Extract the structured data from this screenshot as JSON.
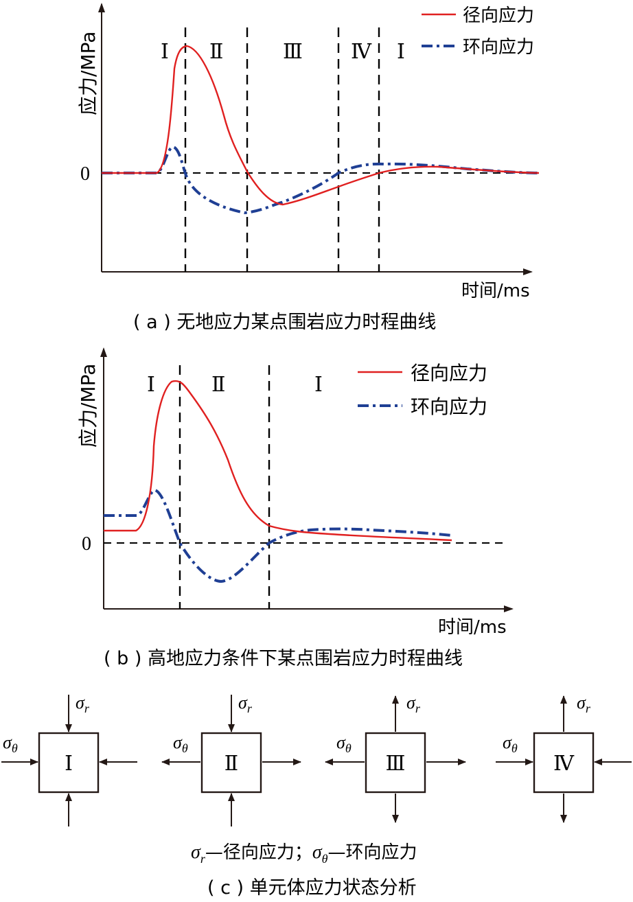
{
  "chart_a": {
    "y_axis_label": "应力/MPa",
    "x_axis_label": "时间/ms",
    "zero_label": "0",
    "caption": "( a ) 无地应力某点围岩应力时程曲线",
    "region_labels": [
      "Ⅰ",
      "Ⅱ",
      "Ⅲ",
      "Ⅳ",
      "Ⅰ"
    ],
    "legend": {
      "radial": "径向应力",
      "hoop": "环向应力"
    }
  },
  "chart_b": {
    "y_axis_label": "应力/MPa",
    "x_axis_label": "时间/ms",
    "zero_label": "0",
    "caption": "( b ) 高地应力条件下某点围岩应力时程曲线",
    "region_labels": [
      "Ⅰ",
      "Ⅱ",
      "Ⅰ"
    ],
    "legend": {
      "radial": "径向应力",
      "hoop": "环向应力"
    }
  },
  "panel_c": {
    "elements": [
      {
        "label": "Ⅰ",
        "radial": "compression",
        "hoop": "compression"
      },
      {
        "label": "Ⅱ",
        "radial": "compression",
        "hoop": "tension"
      },
      {
        "label": "Ⅲ",
        "radial": "tension",
        "hoop": "tension"
      },
      {
        "label": "Ⅳ",
        "radial": "tension",
        "hoop": "compression"
      }
    ],
    "sigma": "σ",
    "sub_r": "r",
    "sub_theta": "θ",
    "legend_radial_desc": "—径向应力；",
    "legend_hoop_desc": "—环向应力",
    "caption": "( c ) 单元体应力状态分析"
  },
  "colors": {
    "radial": "#e02020",
    "hoop": "#1f3f94",
    "axis": "#231815"
  }
}
